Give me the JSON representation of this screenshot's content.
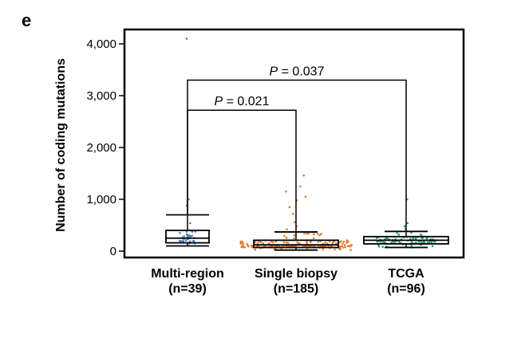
{
  "panel_label": "e",
  "colors": {
    "multi_region": "#4a7fc1",
    "single_biopsy": "#e8782c",
    "tcga": "#2a9a7a"
  },
  "chart_data": {
    "type": "box",
    "ylabel": "Number of coding mutations",
    "ylim": [
      -100,
      4300
    ],
    "yticks": [
      0,
      1000,
      2000,
      3000,
      4000
    ],
    "ytick_labels": [
      "0",
      "1,000",
      "2,000",
      "3,000",
      "4,000"
    ],
    "grid": false,
    "categories": [
      {
        "label_line1": "Multi-region",
        "label_line2": "(n=39)"
      },
      {
        "label_line1": "Single biopsy",
        "label_line2": "(n=185)"
      },
      {
        "label_line1": "TCGA",
        "label_line2": "(n=96)"
      }
    ],
    "boxes": [
      {
        "n": 39,
        "whisker_low": 100,
        "q1": 160,
        "median": 250,
        "q3": 400,
        "whisker_high": 700,
        "outliers": [
          880,
          1000,
          4100
        ]
      },
      {
        "n": 185,
        "whisker_low": 20,
        "q1": 70,
        "median": 120,
        "q3": 210,
        "whisker_high": 370,
        "outliers": [
          420,
          480,
          560,
          720,
          850,
          980,
          1050,
          1150,
          1250,
          1460
        ]
      },
      {
        "n": 96,
        "whisker_low": 70,
        "q1": 140,
        "median": 210,
        "q3": 280,
        "whisker_high": 380,
        "outliers": [
          430,
          480,
          540,
          1000
        ]
      }
    ],
    "comparisons": [
      {
        "from": 0,
        "to": 1,
        "p_prefix": "P",
        "p_value": " = 0.021",
        "y": 2720
      },
      {
        "from": 0,
        "to": 2,
        "p_prefix": "P",
        "p_value": " = 0.037",
        "y": 3300
      }
    ]
  }
}
